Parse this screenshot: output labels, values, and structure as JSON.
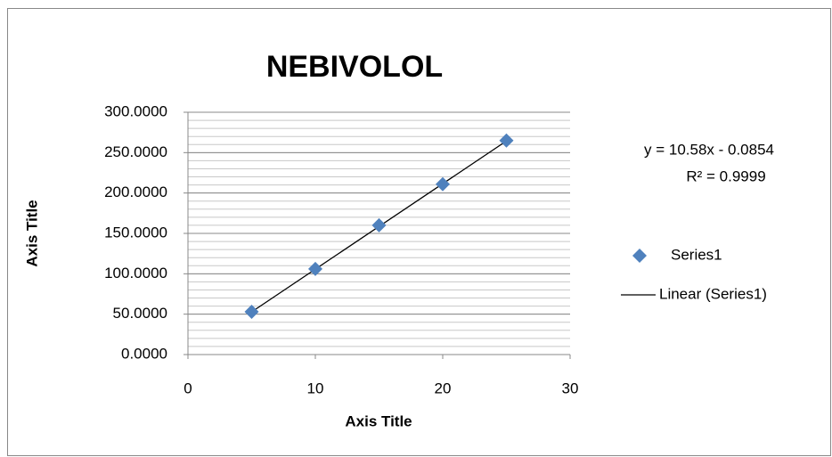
{
  "chart_data": {
    "type": "scatter",
    "title": "NEBIVOLOL",
    "x_label": "Axis Title",
    "y_label": "Axis Title",
    "series": [
      {
        "name": "Series1",
        "color": "#4f81bd",
        "x": [
          5,
          10,
          15,
          20,
          25
        ],
        "values": [
          53,
          106,
          160,
          211,
          265
        ]
      }
    ],
    "trendline": {
      "name": "Linear (Series1)",
      "color": "#000000",
      "slope": 10.58,
      "intercept": -0.0854,
      "equation": "y = 10.58x - 0.0854",
      "r_squared_label": "R² = 0.9999"
    },
    "xlim": [
      0,
      30
    ],
    "xticks": [
      0,
      10,
      20,
      30
    ],
    "ylim": [
      0,
      300
    ],
    "yticks": [
      {
        "value": 0,
        "label": "0.0000"
      },
      {
        "value": 50,
        "label": "50.0000"
      },
      {
        "value": 100,
        "label": "100.0000"
      },
      {
        "value": 150,
        "label": "150.0000"
      },
      {
        "value": 200,
        "label": "200.0000"
      },
      {
        "value": 250,
        "label": "250.0000"
      },
      {
        "value": 300,
        "label": "300.0000"
      }
    ],
    "grid": true,
    "minor_grid_step": 10,
    "legend": "right"
  }
}
